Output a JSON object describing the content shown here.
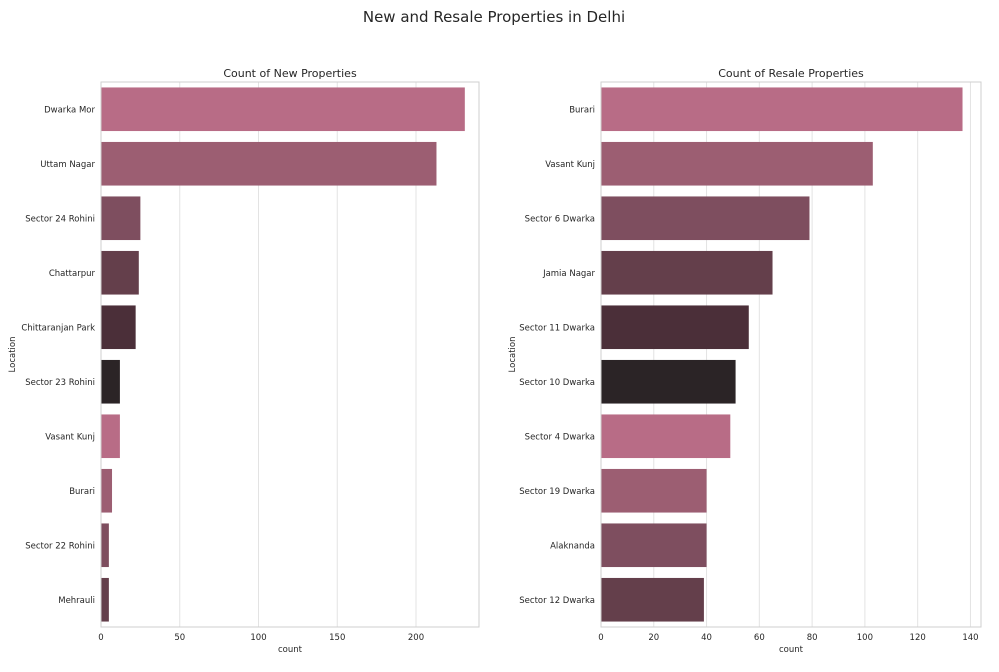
{
  "suptitle": "New and Resale Properties in Delhi",
  "chart_data": [
    {
      "type": "bar",
      "orientation": "horizontal",
      "title": "Count of New Properties",
      "xlabel": "count",
      "ylabel": "Location",
      "categories": [
        "Dwarka Mor",
        "Uttam Nagar",
        "Sector 24 Rohini",
        "Chattarpur",
        "Chittaranjan Park",
        "Sector 23 Rohini",
        "Vasant Kunj",
        "Burari",
        "Sector 22 Rohini",
        "Mehrauli"
      ],
      "values": [
        231,
        213,
        25,
        24,
        22,
        12,
        12,
        7,
        5,
        5
      ],
      "colors": [
        "#b86c86",
        "#9c5e72",
        "#7e4e5f",
        "#643f4b",
        "#4b2f39",
        "#2b2426",
        "#b86c86",
        "#9c5e72",
        "#7e4e5f",
        "#643f4b"
      ],
      "xlim": [
        0,
        240
      ],
      "xticks": [
        0,
        50,
        100,
        150,
        200
      ],
      "grid": true
    },
    {
      "type": "bar",
      "orientation": "horizontal",
      "title": "Count of Resale Properties",
      "xlabel": "count",
      "ylabel": "Location",
      "categories": [
        "Burari",
        "Vasant Kunj",
        "Sector 6 Dwarka",
        "Jamia Nagar",
        "Sector 11 Dwarka",
        "Sector 10 Dwarka",
        "Sector 4 Dwarka",
        "Sector 19 Dwarka",
        "Alaknanda",
        "Sector 12 Dwarka"
      ],
      "values": [
        137,
        103,
        79,
        65,
        56,
        51,
        49,
        40,
        40,
        39
      ],
      "colors": [
        "#b86c86",
        "#9c5e72",
        "#7e4e5f",
        "#643f4b",
        "#4b2f39",
        "#2b2426",
        "#b86c86",
        "#9c5e72",
        "#7e4e5f",
        "#643f4b"
      ],
      "xlim": [
        0,
        144
      ],
      "xticks": [
        0,
        20,
        40,
        60,
        80,
        100,
        120,
        140
      ],
      "grid": true
    }
  ]
}
